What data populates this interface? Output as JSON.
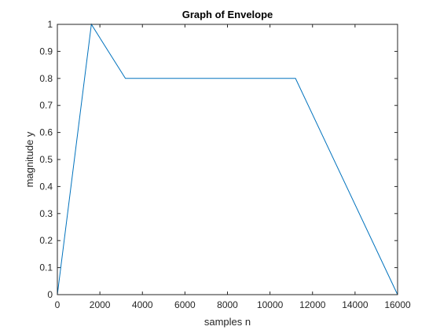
{
  "chart_data": {
    "type": "line",
    "title": "Graph of Envelope",
    "xlabel": "samples n",
    "ylabel": "magnitude y",
    "xlim": [
      0,
      16000
    ],
    "ylim": [
      0,
      1
    ],
    "xticks": [
      0,
      2000,
      4000,
      6000,
      8000,
      10000,
      12000,
      14000,
      16000
    ],
    "yticks": [
      0,
      0.1,
      0.2,
      0.3,
      0.4,
      0.5,
      0.6,
      0.7,
      0.8,
      0.9,
      1
    ],
    "grid": false,
    "series": [
      {
        "x": [
          0,
          1600,
          3200,
          11200,
          16000
        ],
        "y": [
          0,
          1,
          0.8,
          0.8,
          0
        ]
      }
    ],
    "colors": {
      "line": "#0072BD",
      "axis": "#262626",
      "background": "#ffffff"
    }
  }
}
